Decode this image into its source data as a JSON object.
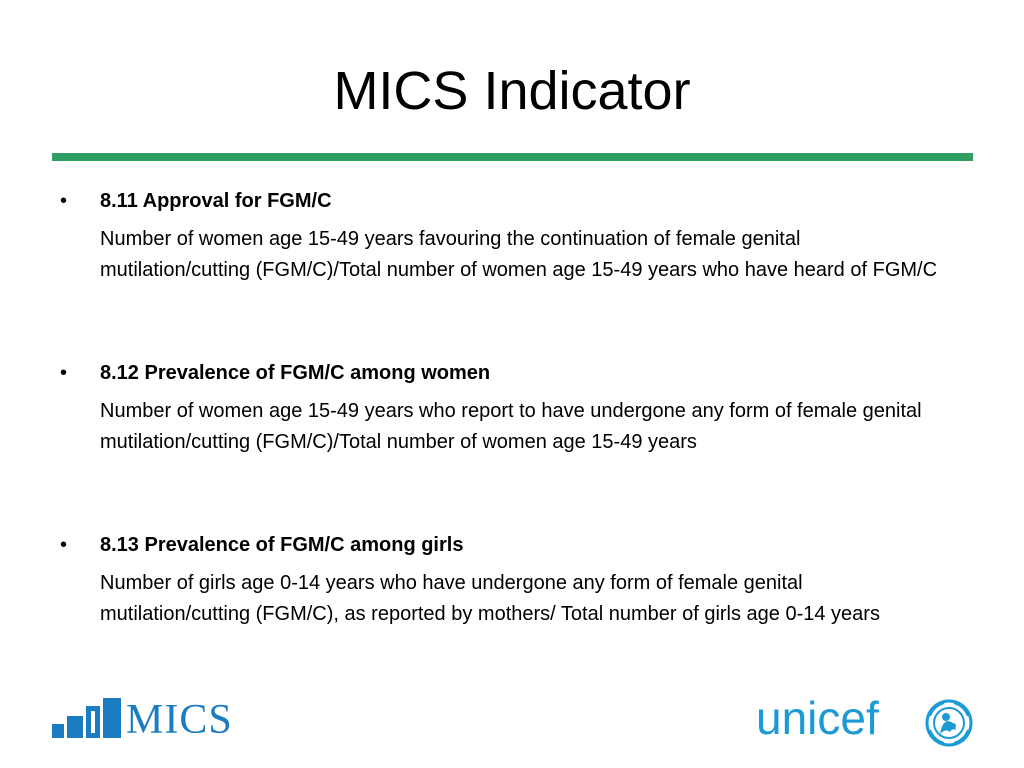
{
  "slide": {
    "title": "MICS Indicator"
  },
  "indicators": [
    {
      "bullet": "•",
      "heading": "8.11 Approval for FGM/C",
      "description": "Number of women age 15-49 years favouring the continuation of female genital mutilation/cutting (FGM/C)/Total number of women age 15-49 years who have heard of FGM/C"
    },
    {
      "bullet": "•",
      "heading": "8.12 Prevalence of FGM/C among women",
      "description": "Number of women age 15-49 years who report to have undergone any form of female genital mutilation/cutting (FGM/C)/Total number of women age 15-49 years"
    },
    {
      "bullet": "•",
      "heading": "8.13 Prevalence of FGM/C among girls",
      "description": "Number of girls age 0-14 years who have undergone any form of female genital mutilation/cutting (FGM/C), as reported by mothers/ Total number of girls age 0-14 years"
    }
  ],
  "logos": {
    "mics": "MICS",
    "unicef": "unicef"
  },
  "colors": {
    "rule": "#2e9e63",
    "mics_blue": "#1c7cc2",
    "unicef_blue": "#1c9ad6"
  }
}
